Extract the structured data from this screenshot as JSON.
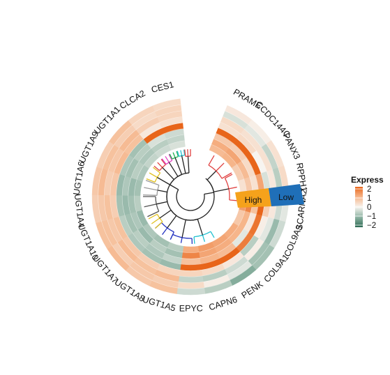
{
  "chart_data": {
    "type": "heatmap",
    "layout": "circular",
    "genes": [
      "PRAME",
      "CCDC144C",
      "PANX3",
      "RPPH1",
      "SCARNA2",
      "COL9A3",
      "COL9A1",
      "PENK",
      "CAPN6",
      "EPYC",
      "UGT1A5",
      "UGT1A8",
      "UGT1A7",
      "UGT1A10",
      "UGT1A4",
      "UGT1A6",
      "UGT1A9",
      "UGT1A1",
      "CLCA2",
      "CES1"
    ],
    "groups": [
      {
        "name": "High",
        "color": "#f5a21b"
      },
      {
        "name": "Low",
        "color": "#1f6fb8"
      }
    ],
    "legend": {
      "title": "Express",
      "ticks": [
        2,
        1,
        0,
        -1,
        -2
      ],
      "colors": [
        "#e8651a",
        "#f6b58a",
        "#f7f4f0",
        "#8fb4a4",
        "#2e6b54"
      ]
    },
    "values": [
      [
        0.9,
        1.1,
        0.7,
        2.0,
        0.3,
        0.4,
        -0.3,
        0.2
      ],
      [
        1.0,
        1.2,
        0.6,
        2.0,
        0.4,
        0.3,
        -0.2,
        0.1
      ],
      [
        0.6,
        0.9,
        0.4,
        2.0,
        0.0,
        0.3,
        -0.5,
        0.3
      ],
      [
        0.3,
        0.7,
        0.3,
        1.2,
        -0.3,
        0.2,
        -0.6,
        0.4
      ],
      [
        1.3,
        1.6,
        0.8,
        2.0,
        0.6,
        0.2,
        -0.4,
        -0.2
      ],
      [
        0.7,
        1.0,
        0.2,
        1.8,
        0.1,
        -0.2,
        -0.9,
        -0.4
      ],
      [
        1.1,
        1.0,
        -0.2,
        1.7,
        -0.6,
        0.1,
        -0.8,
        -0.8
      ],
      [
        1.2,
        1.1,
        0.9,
        2.0,
        0.2,
        -0.4,
        -0.2,
        -1.1
      ],
      [
        1.3,
        1.2,
        1.0,
        2.0,
        0.4,
        -0.6,
        0.1,
        -0.6
      ],
      [
        1.1,
        1.6,
        0.8,
        2.0,
        0.5,
        -0.5,
        0.4,
        -0.4
      ],
      [
        -0.6,
        -0.8,
        -0.5,
        -0.9,
        0.5,
        0.9,
        0.6,
        0.8
      ],
      [
        -0.8,
        -0.6,
        -0.7,
        -0.8,
        0.6,
        0.8,
        0.7,
        0.7
      ],
      [
        -0.7,
        -0.9,
        -0.6,
        -0.7,
        0.7,
        0.9,
        0.6,
        0.9
      ],
      [
        -0.9,
        -0.7,
        -0.8,
        -0.6,
        0.8,
        0.7,
        0.8,
        0.8
      ],
      [
        -0.6,
        -0.8,
        -0.9,
        -0.8,
        0.6,
        0.8,
        0.7,
        0.6
      ],
      [
        -0.8,
        -0.9,
        -0.7,
        -0.9,
        0.7,
        0.6,
        0.9,
        0.7
      ],
      [
        -0.7,
        -0.6,
        -0.8,
        -0.7,
        0.9,
        0.7,
        0.8,
        0.6
      ],
      [
        -0.5,
        -0.7,
        -0.6,
        -0.8,
        0.8,
        0.9,
        0.6,
        0.8
      ],
      [
        -0.4,
        -0.6,
        -0.3,
        2.0,
        0.2,
        0.6,
        0.4,
        0.5
      ],
      [
        -0.3,
        -0.5,
        -0.4,
        2.0,
        0.3,
        0.5,
        0.5,
        0.4
      ]
    ]
  },
  "dendrogram_colors": [
    "#e04040",
    "#3b3b8f",
    "#20c0d0",
    "#e040c0",
    "#80c040",
    "#e0c020",
    "#555555",
    "#9a9a9a",
    "#2030c0",
    "#20b050"
  ]
}
